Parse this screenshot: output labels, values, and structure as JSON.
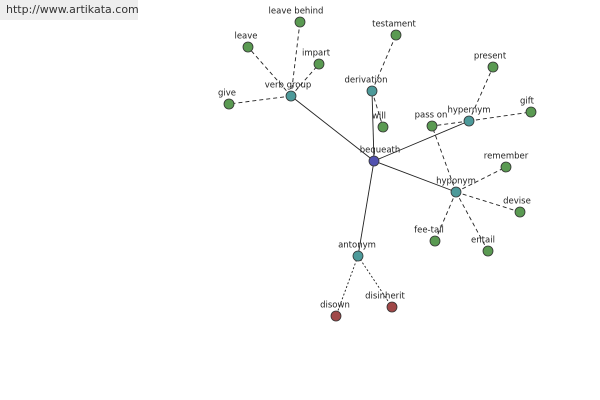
{
  "header": {
    "url": "http://www.artikata.com"
  },
  "nodes": [
    {
      "label": "bequeath"
    },
    {
      "label": "verb group"
    },
    {
      "label": "derivation"
    },
    {
      "label": "hypernym"
    },
    {
      "label": "hyponym"
    },
    {
      "label": "antonym"
    },
    {
      "label": "leave behind"
    },
    {
      "label": "leave"
    },
    {
      "label": "impart"
    },
    {
      "label": "give"
    },
    {
      "label": "testament"
    },
    {
      "label": "will"
    },
    {
      "label": "present"
    },
    {
      "label": "gift"
    },
    {
      "label": "pass on"
    },
    {
      "label": "remember"
    },
    {
      "label": "devise"
    },
    {
      "label": "entail"
    },
    {
      "label": "fee-tail"
    },
    {
      "label": "disown"
    },
    {
      "label": "disinherit"
    }
  ]
}
